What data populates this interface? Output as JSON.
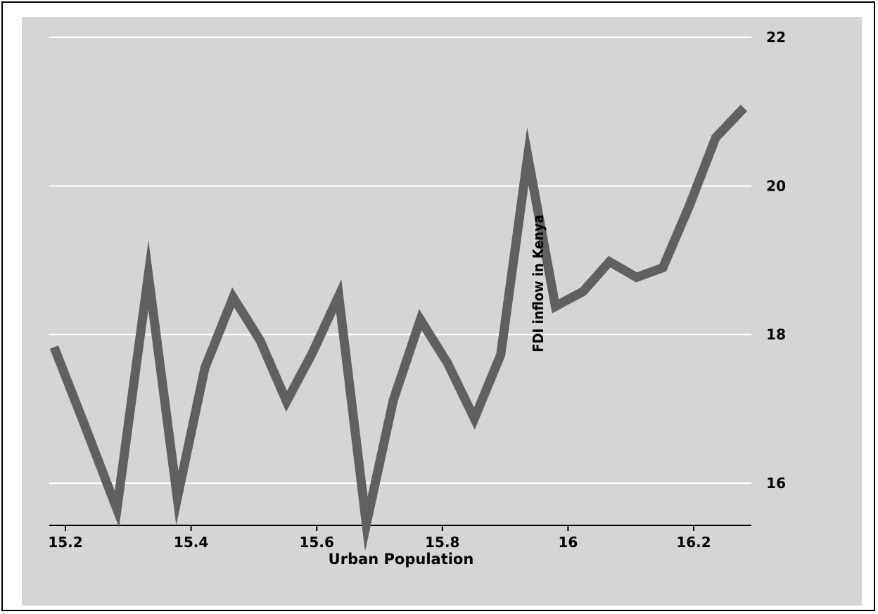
{
  "chart_data": {
    "type": "line",
    "xlabel": "Urban Population",
    "ylabel": "FDI inflow in Kenya",
    "xlim": [
      15.17,
      16.31
    ],
    "ylim": [
      15.45,
      22.3
    ],
    "xticks": [
      15.2,
      15.4,
      15.6,
      15.8,
      16,
      16.2
    ],
    "xtick_labels": [
      "15.2",
      "15.4",
      "15.6",
      "15.8",
      "16",
      "16.2"
    ],
    "yticks": [
      16,
      18,
      20,
      22
    ],
    "ytick_labels": [
      "16",
      "18",
      "20",
      "22"
    ],
    "grid": true,
    "background": "#d5d5d5",
    "grid_color": "#ffffff",
    "line_color": "#606060",
    "series": [
      {
        "x": [
          15.182,
          15.232,
          15.282,
          15.332,
          15.378,
          15.422,
          15.467,
          15.51,
          15.552,
          15.593,
          15.635,
          15.679,
          15.722,
          15.765,
          15.808,
          15.851,
          15.893,
          15.936,
          15.98,
          16.024,
          16.066,
          16.109,
          16.151,
          16.193,
          16.235,
          16.28
        ],
        "y": [
          17.83,
          16.75,
          15.65,
          18.8,
          15.8,
          17.55,
          18.5,
          17.92,
          17.1,
          17.75,
          18.52,
          15.45,
          17.12,
          18.2,
          17.62,
          16.87,
          17.73,
          20.4,
          18.38,
          18.58,
          18.98,
          18.77,
          18.9,
          19.73,
          20.65,
          21.05
        ]
      }
    ]
  }
}
